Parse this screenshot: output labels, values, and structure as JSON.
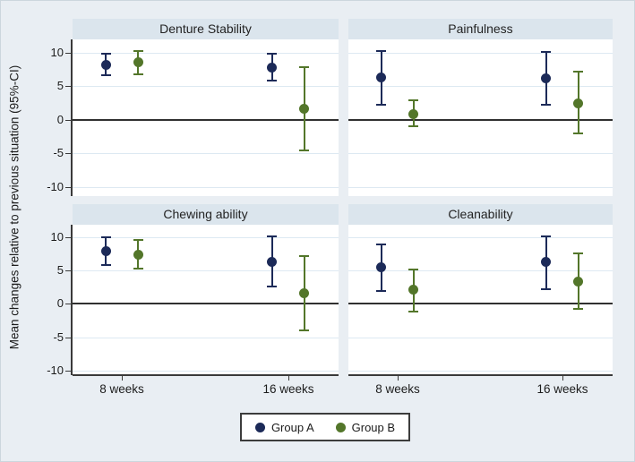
{
  "chart_data": {
    "type": "scatter",
    "subtype": "point-estimates-with-95ci-error-bars",
    "layout": "2x2-panels",
    "categories": [
      "8 weeks",
      "16 weeks"
    ],
    "y_ticks": [
      10,
      5,
      0,
      -5,
      -10
    ],
    "ylim": [
      -11.5,
      12
    ],
    "grid": true,
    "zero_reference_line": 0,
    "ylabel": "Mean changes relative to previous situation (95%-CI)",
    "legend_position": "bottom-center",
    "series_names": [
      "Group A",
      "Group B"
    ],
    "panels": [
      {
        "title": "Denture Stability",
        "series": [
          {
            "name": "Group A",
            "color": "#1c2a58",
            "points": [
              {
                "x": "8 weeks",
                "mean": 8.2,
                "ci_low": 6.6,
                "ci_high": 9.8
              },
              {
                "x": "16 weeks",
                "mean": 7.8,
                "ci_low": 5.8,
                "ci_high": 9.8
              }
            ]
          },
          {
            "name": "Group B",
            "color": "#53762a",
            "points": [
              {
                "x": "8 weeks",
                "mean": 8.6,
                "ci_low": 6.8,
                "ci_high": 10.3
              },
              {
                "x": "16 weeks",
                "mean": 1.6,
                "ci_low": -4.6,
                "ci_high": 7.8
              }
            ]
          }
        ]
      },
      {
        "title": "Painfulness",
        "series": [
          {
            "name": "Group A",
            "color": "#1c2a58",
            "points": [
              {
                "x": "8 weeks",
                "mean": 6.3,
                "ci_low": 2.3,
                "ci_high": 10.3
              },
              {
                "x": "16 weeks",
                "mean": 6.2,
                "ci_low": 2.2,
                "ci_high": 10.1
              }
            ]
          },
          {
            "name": "Group B",
            "color": "#53762a",
            "points": [
              {
                "x": "8 weeks",
                "mean": 0.9,
                "ci_low": -1.0,
                "ci_high": 2.9
              },
              {
                "x": "16 weeks",
                "mean": 2.5,
                "ci_low": -2.0,
                "ci_high": 7.2
              }
            ]
          }
        ]
      },
      {
        "title": "Chewing ability",
        "series": [
          {
            "name": "Group A",
            "color": "#1c2a58",
            "points": [
              {
                "x": "8 weeks",
                "mean": 7.9,
                "ci_low": 5.8,
                "ci_high": 10.0
              },
              {
                "x": "16 weeks",
                "mean": 6.3,
                "ci_low": 2.6,
                "ci_high": 10.2
              }
            ]
          },
          {
            "name": "Group B",
            "color": "#53762a",
            "points": [
              {
                "x": "8 weeks",
                "mean": 7.4,
                "ci_low": 5.3,
                "ci_high": 9.6
              },
              {
                "x": "16 weeks",
                "mean": 1.6,
                "ci_low": -4.0,
                "ci_high": 7.2
              }
            ]
          }
        ]
      },
      {
        "title": "Cleanability",
        "series": [
          {
            "name": "Group A",
            "color": "#1c2a58",
            "points": [
              {
                "x": "8 weeks",
                "mean": 5.5,
                "ci_low": 1.9,
                "ci_high": 9.0
              },
              {
                "x": "16 weeks",
                "mean": 6.3,
                "ci_low": 2.2,
                "ci_high": 10.1
              }
            ]
          },
          {
            "name": "Group B",
            "color": "#53762a",
            "points": [
              {
                "x": "8 weeks",
                "mean": 2.1,
                "ci_low": -1.1,
                "ci_high": 5.2
              },
              {
                "x": "16 weeks",
                "mean": 3.4,
                "ci_low": -0.8,
                "ci_high": 7.6
              }
            ]
          }
        ]
      }
    ]
  },
  "legend": {
    "items": [
      {
        "label": "Group A",
        "color": "#1c2a58"
      },
      {
        "label": "Group B",
        "color": "#53762a"
      }
    ]
  },
  "colors": {
    "background": "#e9eef3",
    "panel_title_strip": "#dbe5ed",
    "plot_background": "#ffffff",
    "gridline": "#dde9f2",
    "zero_line": "#303030",
    "axis": "#3a3a3a",
    "group_a": "#1c2a58",
    "group_b": "#53762a",
    "text": "#1c1c1c"
  }
}
